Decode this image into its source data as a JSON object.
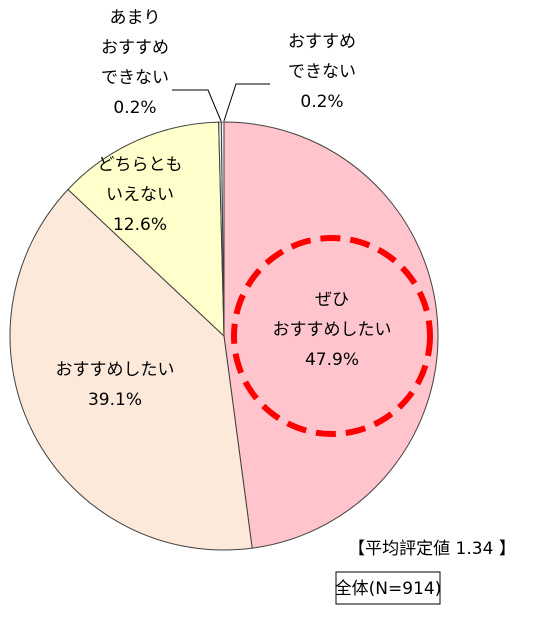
{
  "chart_data": {
    "type": "pie",
    "categories": [
      [
        "ぜひ",
        "おすすめしたい"
      ],
      [
        "おすすめしたい"
      ],
      [
        "どちらとも",
        "いえない"
      ],
      [
        "あまり",
        "おすすめ",
        "できない"
      ],
      [
        "おすすめ",
        "できない"
      ]
    ],
    "values": [
      47.9,
      39.1,
      12.6,
      0.2,
      0.2
    ],
    "value_labels": [
      "47.9%",
      "39.1%",
      "12.6%",
      "0.2%",
      "0.2%"
    ],
    "colors": [
      "#ffc4cc",
      "#fde9d9",
      "#ffffcc",
      "#f2f2f2",
      "#f2f2f2"
    ],
    "annotations": [
      "【平均評定値 1.34 】",
      "全体(N=914)"
    ]
  }
}
